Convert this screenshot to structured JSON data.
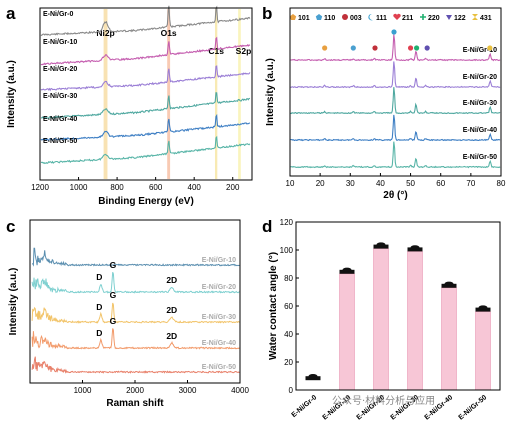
{
  "panels": [
    "a",
    "b",
    "c",
    "d"
  ],
  "watermark": "公众号·材料分析与应用",
  "colors": {
    "E-Ni/Gr-0": "#8a8a8a",
    "E-Ni/Gr-10": "#c55fb0",
    "E-Ni/Gr-20": "#9b7fd6",
    "E-Ni/Gr-30": "#4fa8a0",
    "E-Ni/Gr-40": "#3e7fc4",
    "E-Ni/Gr-50": "#59b5a8",
    "raman-E-Ni/Gr-10": "#5b8fb0",
    "raman-E-Ni/Gr-20": "#7fd0d0",
    "raman-E-Ni/Gr-30": "#f2c46a",
    "raman-E-Ni/Gr-40": "#f29a6a",
    "raman-E-Ni/Gr-50": "#e8806a",
    "bar": "#f7c6d6",
    "bar_edge": "#e89ab4"
  },
  "chart_data": [
    {
      "panel": "a",
      "type": "line",
      "xlabel": "Binding Energy (eV)",
      "ylabel": "Intensity (a.u.)",
      "xlim": [
        1200,
        100
      ],
      "xticks": [
        1200,
        1000,
        800,
        600,
        400,
        200
      ],
      "series": [
        {
          "name": "E-Ni/Gr-0"
        },
        {
          "name": "E-Ni/Gr-10"
        },
        {
          "name": "E-Ni/Gr-20"
        },
        {
          "name": "E-Ni/Gr-30"
        },
        {
          "name": "E-Ni/Gr-40"
        },
        {
          "name": "E-Ni/Gr-50"
        }
      ],
      "highlight_bands": [
        {
          "label": "Ni2p",
          "from": 870,
          "to": 850,
          "color": "#f6d89a"
        },
        {
          "label": "O1s",
          "from": 540,
          "to": 525,
          "color": "#f6b89a"
        },
        {
          "label": "C1s",
          "from": 292,
          "to": 280,
          "color": "#f6e39a"
        },
        {
          "label": "S2p",
          "from": 172,
          "to": 158,
          "color": "#f8f0a8"
        }
      ]
    },
    {
      "panel": "b",
      "type": "line",
      "xlabel": "2θ (°)",
      "ylabel": "Intensity (a.u.)",
      "xlim": [
        10,
        80
      ],
      "xticks": [
        10,
        20,
        30,
        40,
        50,
        60,
        70,
        80
      ],
      "legend": [
        {
          "label": "101",
          "symbol": "pentagon",
          "color": "#e8a040"
        },
        {
          "label": "110",
          "symbol": "pentagon",
          "color": "#4aa0d0"
        },
        {
          "label": "003",
          "symbol": "circle",
          "color": "#c0303a"
        },
        {
          "label": "111",
          "symbol": "moon",
          "color": "#3aa0d0"
        },
        {
          "label": "211",
          "symbol": "heart",
          "color": "#e04050"
        },
        {
          "label": "220",
          "symbol": "plus",
          "color": "#20b070"
        },
        {
          "label": "122",
          "symbol": "triangle",
          "color": "#6050b0"
        },
        {
          "label": "431",
          "symbol": "hourglass",
          "color": "#e8c040"
        }
      ],
      "series": [
        {
          "name": "E-Ni/Gr-10"
        },
        {
          "name": "E-Ni/Gr-20"
        },
        {
          "name": "E-Ni/Gr-30"
        },
        {
          "name": "E-Ni/Gr-40"
        },
        {
          "name": "E-Ni/Gr-50"
        }
      ]
    },
    {
      "panel": "c",
      "type": "line",
      "xlabel": "Raman shift",
      "ylabel": "Intensity (a.u.)",
      "xlim": [
        0,
        4000
      ],
      "xticks": [
        1000,
        2000,
        3000,
        4000
      ],
      "series": [
        {
          "name": "E-Ni/Gr-10"
        },
        {
          "name": "E-Ni/Gr-20"
        },
        {
          "name": "E-Ni/Gr-30"
        },
        {
          "name": "E-Ni/Gr-40"
        },
        {
          "name": "E-Ni/Gr-50"
        }
      ],
      "peak_labels": [
        "D",
        "G",
        "2D"
      ]
    },
    {
      "panel": "d",
      "type": "bar",
      "ylabel": "Water contact angle (°)",
      "ylim": [
        0,
        120
      ],
      "yticks": [
        0,
        20,
        40,
        60,
        80,
        100,
        120
      ],
      "categories": [
        "E-Ni/Gr-0",
        "E-Ni/Gr-10",
        "E-Ni/Gr-20",
        "E-Ni/Gr-30",
        "E-Ni/Gr-40",
        "E-Ni/Gr-50"
      ],
      "values": [
        7,
        83,
        101,
        99,
        73,
        56
      ]
    }
  ]
}
